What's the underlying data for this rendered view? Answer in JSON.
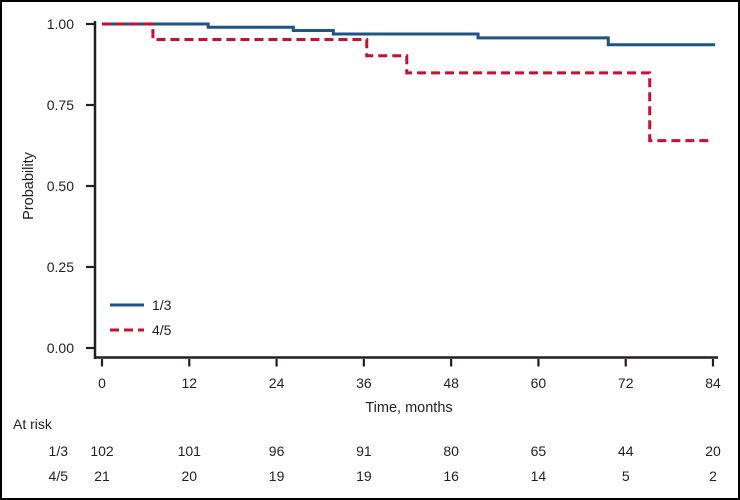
{
  "figure": {
    "background": "#ffffff",
    "frame_color": "#000000",
    "axis_color": "#231f20"
  },
  "chart_data": {
    "type": "line",
    "subtype": "kaplan-meier-step",
    "title": "",
    "xlabel": "Time, months",
    "ylabel": "Probability",
    "xlim": [
      0,
      84
    ],
    "ylim": [
      0,
      1
    ],
    "grid": false,
    "xticks": [
      0,
      12,
      24,
      36,
      48,
      60,
      72,
      84
    ],
    "yticks": [
      {
        "v": 1.0,
        "label": "1.00"
      },
      {
        "v": 0.75,
        "label": "0.75"
      },
      {
        "v": 0.5,
        "label": "0.50"
      },
      {
        "v": 0.25,
        "label": "0.25"
      },
      {
        "v": 0.0,
        "label": "0.00"
      }
    ],
    "legend": {
      "position": "inside-bottom-left"
    },
    "series": [
      {
        "name": "1/3",
        "color": "#1e5484",
        "style": "solid",
        "points": [
          [
            0,
            1.0
          ],
          [
            14.6,
            0.99
          ],
          [
            26.3,
            0.98
          ],
          [
            31.8,
            0.969
          ],
          [
            51.7,
            0.957
          ],
          [
            69.6,
            0.936
          ]
        ],
        "end_t": 84.3
      },
      {
        "name": "4/5",
        "color": "#c8102e",
        "style": "dashed",
        "points": [
          [
            0,
            1.0
          ],
          [
            7,
            0.952
          ],
          [
            36.4,
            0.902
          ],
          [
            41.9,
            0.849
          ],
          [
            75.3,
            0.64
          ]
        ],
        "end_t": 83.6
      }
    ],
    "at_risk": {
      "label": "At risk",
      "times": [
        0,
        12,
        24,
        36,
        48,
        60,
        72,
        84
      ],
      "rows": [
        {
          "name": "1/3",
          "counts": [
            102,
            101,
            96,
            91,
            80,
            65,
            44,
            20
          ]
        },
        {
          "name": "4/5",
          "counts": [
            21,
            20,
            19,
            19,
            16,
            14,
            5,
            2
          ]
        }
      ]
    }
  }
}
